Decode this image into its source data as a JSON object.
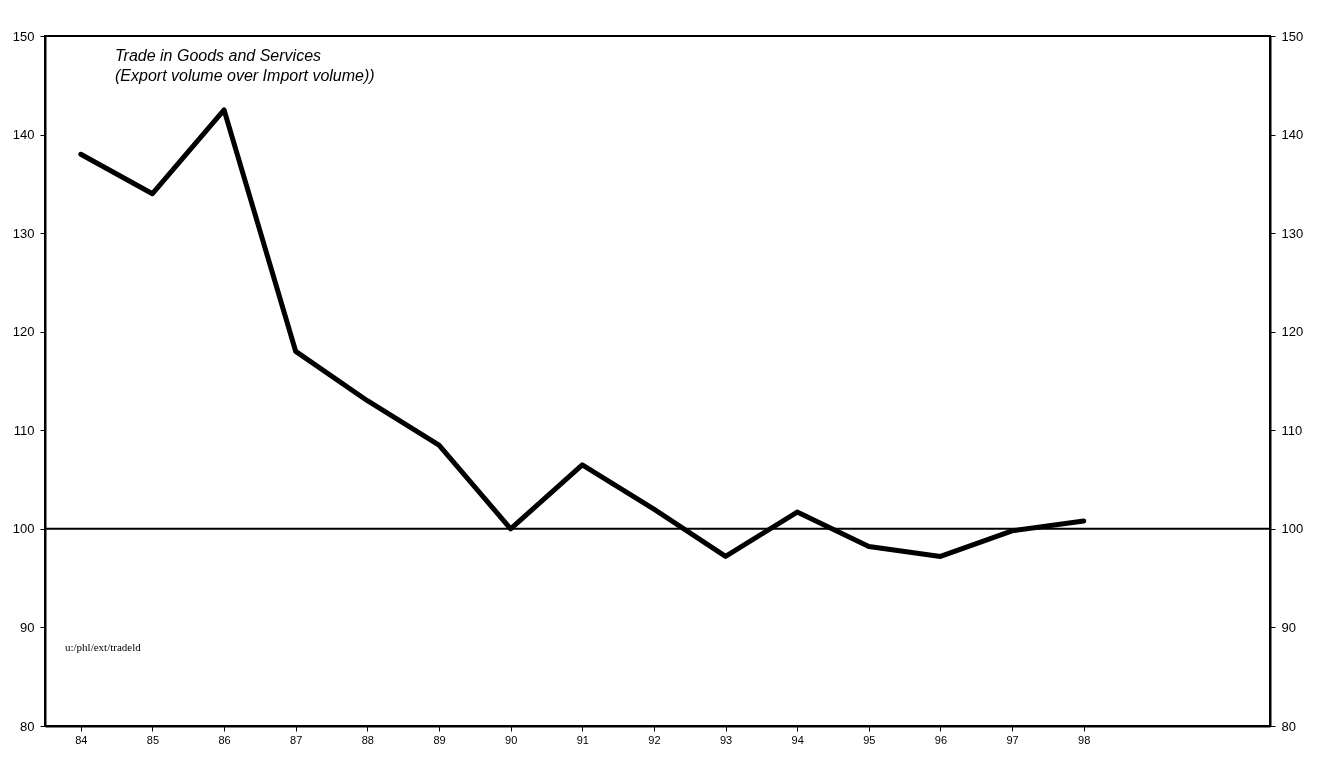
{
  "chart_data": {
    "type": "line",
    "title": "Trade in Goods and Services",
    "subtitle": "(Export volume over Import volume))",
    "x": [
      84,
      85,
      86,
      87,
      88,
      89,
      90,
      91,
      92,
      93,
      94,
      95,
      96,
      97,
      98
    ],
    "series": [
      {
        "color": "#000000",
        "values": [
          138,
          134,
          142.5,
          118,
          113,
          108.5,
          100,
          106.5,
          102,
          97.2,
          101.7,
          98.2,
          97.2,
          99.8,
          100.8
        ]
      }
    ],
    "xlim": [
      83.5,
      100.6
    ],
    "xticks": [
      84,
      85,
      86,
      87,
      88,
      89,
      90,
      91,
      92,
      93,
      94,
      95,
      96,
      97,
      98
    ],
    "ylim": [
      80,
      150
    ],
    "yticks": [
      80,
      90,
      100,
      110,
      120,
      130,
      140,
      150
    ],
    "y2lim": [
      80,
      150
    ],
    "y2ticks": [
      80,
      90,
      100,
      110,
      120,
      130,
      140,
      150
    ],
    "ref_lines": [
      {
        "axis": "y",
        "value": 100
      }
    ],
    "annotations": [
      "u:/phl/ext/tradeld"
    ],
    "grid": false,
    "marker": "none",
    "line_style": "solid"
  }
}
